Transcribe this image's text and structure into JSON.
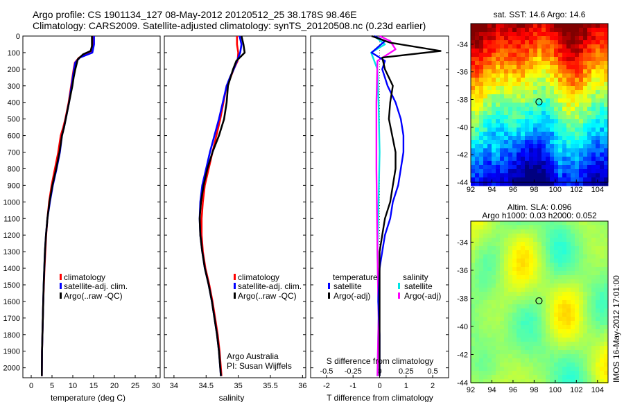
{
  "header": {
    "line1": "Argo profile: CS 1901134_127 08-May-2012 20120512_25 38.178S 98.46E",
    "line2": "Climatology: CARS2009. Satellite-adjusted climatology: synTS_20120508.nc (0.23d earlier)"
  },
  "y_ticks": [
    0,
    100,
    200,
    300,
    400,
    500,
    600,
    700,
    800,
    900,
    1000,
    1100,
    1200,
    1300,
    1400,
    1500,
    1600,
    1700,
    1800,
    1900,
    2000
  ],
  "colors": {
    "climatology": "#ff0000",
    "satellite": "#0000ff",
    "argo": "#000000",
    "sat_salinity": "#00e5e5",
    "argo_salinity": "#ff00ff"
  },
  "panels": {
    "temperature": {
      "xlabel": "temperature (deg C)",
      "x_ticks": [
        "0",
        "5",
        "10",
        "15",
        "20",
        "25",
        "30"
      ],
      "legend": [
        "climatology",
        "satellite-adj. clim.",
        "Argo(..raw -QC)"
      ]
    },
    "salinity": {
      "xlabel": "salinity",
      "x_ticks": [
        "34",
        "34.5",
        "35",
        "35.5",
        "36"
      ],
      "legend": [
        "climatology",
        "satellite-adj. clim.",
        "Argo(..raw -QC)"
      ],
      "credit": [
        "Argo Australia",
        "PI: Susan Wijffels"
      ]
    },
    "difference": {
      "xlabel": "T difference from climatology",
      "top_label": "S difference from climatology",
      "s_ticks": [
        "-0.5",
        "-0.25",
        "0",
        "0.25",
        "0.5"
      ],
      "t_ticks": [
        "-2",
        "-1",
        "0",
        "1",
        "2"
      ],
      "legend_temp_title": "temperature",
      "legend_sal_title": "salinity",
      "legend_temp": [
        "satellite",
        "Argo(-adj)"
      ],
      "legend_sal": [
        "satellite",
        "Argo(-adj)"
      ]
    }
  },
  "maps": {
    "sst": {
      "title": "sat. SST: 14.6 Argo: 14.6",
      "lat_ticks": [
        "-34",
        "-36",
        "-38",
        "-40",
        "-42",
        "-44"
      ],
      "lon_ticks": [
        "92",
        "94",
        "96",
        "98",
        "100",
        "102",
        "104"
      ]
    },
    "sla": {
      "title1": "Altim. SLA: 0.096",
      "title2": "Argo h1000: 0.03 h2000: 0.052",
      "lat_ticks": [
        "-34",
        "-36",
        "-38",
        "-40",
        "-42",
        "-44"
      ],
      "lon_ticks": [
        "92",
        "94",
        "96",
        "98",
        "100",
        "102",
        "104"
      ]
    },
    "float_position": {
      "lon": 98.46,
      "lat": -38.178
    }
  },
  "side_label": "IMOS 16-May-2012 17:01:00",
  "chart_data": [
    {
      "type": "line",
      "title": "",
      "xlabel": "temperature (deg C)",
      "ylabel": "",
      "xlim": [
        -2,
        31
      ],
      "ylim": [
        2060,
        0
      ],
      "series": [
        {
          "name": "climatology",
          "x": [
            14.9,
            14.9,
            14.5,
            11.5,
            10.5,
            10.2,
            9.9,
            9.6,
            9.3,
            9.0,
            8.6,
            8.2,
            7.7,
            7.1,
            6.5,
            5.7,
            4.9,
            4.3,
            3.9,
            3.6,
            3.4,
            3.2,
            3.05,
            2.9,
            2.8,
            2.7,
            2.6,
            2.55
          ],
          "y": [
            0,
            50,
            100,
            130,
            160,
            200,
            250,
            300,
            350,
            400,
            450,
            500,
            550,
            600,
            700,
            800,
            900,
            1000,
            1100,
            1200,
            1300,
            1400,
            1500,
            1600,
            1700,
            1800,
            1900,
            2050
          ]
        },
        {
          "name": "satellite-adj. clim.",
          "x": [
            15.1,
            15.1,
            14.7,
            11.7,
            10.6,
            10.3,
            10.0,
            9.7,
            9.4,
            9.1,
            8.7,
            8.3,
            7.9,
            7.4,
            6.9,
            6.1,
            5.2,
            4.5,
            3.9,
            3.55,
            3.3,
            3.15,
            3.0,
            2.9,
            2.8,
            2.7,
            2.6,
            2.55
          ],
          "y": [
            0,
            50,
            100,
            130,
            160,
            200,
            250,
            300,
            350,
            400,
            450,
            500,
            550,
            600,
            700,
            800,
            900,
            1000,
            1100,
            1200,
            1300,
            1400,
            1500,
            1600,
            1700,
            1800,
            1900,
            2050
          ]
        },
        {
          "name": "Argo(..raw -QC)",
          "x": [
            14.6,
            14.6,
            14.3,
            12.5,
            11.2,
            10.6,
            10.2,
            9.9,
            9.5,
            9.1,
            8.7,
            8.3,
            7.9,
            7.4,
            6.8,
            6.0,
            5.1,
            4.4,
            3.9,
            3.55,
            3.3,
            3.15,
            3.0,
            2.9,
            2.8,
            2.7,
            2.6,
            2.55
          ],
          "y": [
            0,
            60,
            90,
            110,
            140,
            200,
            250,
            300,
            350,
            400,
            450,
            500,
            550,
            600,
            700,
            800,
            900,
            1000,
            1100,
            1200,
            1300,
            1400,
            1500,
            1600,
            1700,
            1800,
            1900,
            2050
          ]
        }
      ]
    },
    {
      "type": "line",
      "title": "",
      "xlabel": "salinity",
      "ylabel": "",
      "xlim": [
        33.85,
        36.05
      ],
      "ylim": [
        2060,
        0
      ],
      "series": [
        {
          "name": "climatology",
          "x": [
            34.98,
            34.98,
            35.0,
            34.99,
            34.93,
            34.88,
            34.82,
            34.77,
            34.72,
            34.66,
            34.6,
            34.54,
            34.48,
            34.45,
            34.43,
            34.43,
            34.45,
            34.49,
            34.55,
            34.6,
            34.64,
            34.68,
            34.71,
            34.74
          ],
          "y": [
            0,
            50,
            100,
            150,
            200,
            250,
            300,
            400,
            500,
            600,
            700,
            800,
            900,
            1000,
            1100,
            1200,
            1300,
            1400,
            1500,
            1600,
            1700,
            1800,
            1900,
            2050
          ]
        },
        {
          "name": "satellite-adj. clim.",
          "x": [
            35.02,
            35.05,
            35.03,
            34.98,
            34.93,
            34.87,
            34.82,
            34.76,
            34.7,
            34.63,
            34.56,
            34.5,
            34.44,
            34.41,
            34.4,
            34.41,
            34.44,
            34.48,
            34.54,
            34.59,
            34.63,
            34.67,
            34.7,
            34.73
          ],
          "y": [
            0,
            50,
            100,
            150,
            200,
            250,
            300,
            400,
            500,
            600,
            700,
            800,
            900,
            1000,
            1100,
            1200,
            1300,
            1400,
            1500,
            1600,
            1700,
            1800,
            1900,
            2050
          ]
        },
        {
          "name": "Argo(..raw -QC)",
          "x": [
            35.05,
            35.08,
            35.1,
            34.97,
            34.92,
            34.88,
            34.84,
            34.82,
            34.78,
            34.7,
            34.6,
            34.52,
            34.46,
            34.42,
            34.4,
            34.41,
            34.44,
            34.48,
            34.54,
            34.59,
            34.63,
            34.67,
            34.7,
            34.73
          ],
          "y": [
            0,
            50,
            100,
            150,
            200,
            250,
            300,
            400,
            500,
            600,
            700,
            800,
            900,
            1000,
            1100,
            1200,
            1300,
            1400,
            1500,
            1600,
            1700,
            1800,
            1900,
            2050
          ]
        }
      ]
    },
    {
      "type": "line",
      "title": "",
      "xlabel": "T difference from climatology",
      "x2label": "S difference from climatology",
      "ylabel": "",
      "xlim": [
        -2.6,
        2.6
      ],
      "ylim": [
        2060,
        0
      ],
      "series": [
        {
          "name": "temperature satellite",
          "axis": "T",
          "x": [
            -0.2,
            0.2,
            -0.3,
            0.2,
            0.1,
            0.3,
            0.6,
            0.8,
            0.9,
            0.9,
            0.8,
            0.7,
            0.5,
            0.4,
            0.2,
            0.1,
            0.0,
            -0.05,
            0.0,
            0.0
          ],
          "y": [
            0,
            30,
            100,
            150,
            200,
            300,
            400,
            500,
            600,
            700,
            800,
            900,
            1000,
            1100,
            1200,
            1300,
            1400,
            1600,
            1800,
            2050
          ]
        },
        {
          "name": "temperature Argo(-adj)",
          "axis": "T",
          "x": [
            -0.3,
            0.4,
            2.3,
            0.1,
            0.2,
            0.5,
            0.4,
            0.35,
            0.6,
            0.6,
            0.5,
            0.4,
            0.2,
            0.1,
            0.0,
            0.0,
            0.0,
            0.0
          ],
          "y": [
            0,
            40,
            90,
            130,
            200,
            300,
            400,
            500,
            700,
            800,
            900,
            1000,
            1100,
            1200,
            1300,
            1500,
            1800,
            2050
          ]
        },
        {
          "name": "salinity satellite",
          "axis": "S",
          "x": [
            -0.05,
            0.05,
            -0.08,
            -0.02,
            -0.01,
            0.0,
            -0.01,
            -0.02,
            -0.01,
            -0.02
          ],
          "y": [
            0,
            50,
            100,
            200,
            400,
            700,
            1000,
            1300,
            1700,
            2050
          ]
        },
        {
          "name": "salinity Argo(-adj)",
          "axis": "S",
          "x": [
            0.0,
            0.1,
            0.15,
            -0.02,
            -0.03,
            -0.03,
            -0.02,
            -0.01,
            -0.02
          ],
          "y": [
            0,
            30,
            80,
            150,
            400,
            800,
            1300,
            1700,
            2050
          ]
        }
      ]
    },
    {
      "type": "heatmap",
      "title": "sat. SST: 14.6 Argo: 14.6",
      "xlabel": "",
      "ylabel": "",
      "xlim": [
        92,
        105
      ],
      "ylim": [
        -44,
        -32.5
      ],
      "points": [
        {
          "lon": 98.46,
          "lat": -38.178
        }
      ]
    },
    {
      "type": "heatmap",
      "title": "Altim. SLA: 0.096",
      "xlabel": "",
      "ylabel": "",
      "xlim": [
        92,
        105
      ],
      "ylim": [
        -44,
        -32.5
      ],
      "points": [
        {
          "lon": 98.46,
          "lat": -38.178
        }
      ]
    }
  ]
}
